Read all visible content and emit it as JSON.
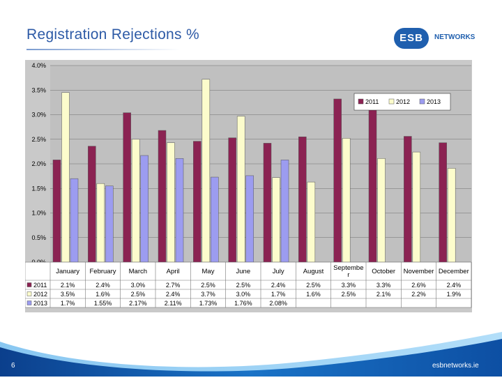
{
  "slide": {
    "title": "Registration Rejections %",
    "logo_mark": "ESB",
    "logo_text": "NETWORKS",
    "page_number": "6",
    "website": "esbnetworks.ie"
  },
  "colors": {
    "s2011": "#8b2252",
    "s2012": "#fcfccc",
    "s2013": "#9c9cf0",
    "accent": "#2d5aa6"
  },
  "chart_data": {
    "type": "bar",
    "title": "",
    "xlabel": "",
    "ylabel": "",
    "ylim": [
      0,
      4.0
    ],
    "yticks": [
      "0.0%",
      "0.5%",
      "1.0%",
      "1.5%",
      "2.0%",
      "2.5%",
      "3.0%",
      "3.5%",
      "4.0%"
    ],
    "legend_position": "top-right",
    "grid": true,
    "categories": [
      "January",
      "February",
      "March",
      "April",
      "May",
      "June",
      "July",
      "August",
      "Septembe r",
      "October",
      "November",
      "December"
    ],
    "series": [
      {
        "name": "2011",
        "values": [
          2.08,
          2.36,
          3.04,
          2.68,
          2.46,
          2.53,
          2.42,
          2.55,
          3.32,
          3.3,
          2.56,
          2.43
        ],
        "labels": [
          "2.1%",
          "2.4%",
          "3.0%",
          "2.7%",
          "2.5%",
          "2.5%",
          "2.4%",
          "2.5%",
          "3.3%",
          "3.3%",
          "2.6%",
          "2.4%"
        ]
      },
      {
        "name": "2012",
        "values": [
          3.45,
          1.6,
          2.5,
          2.43,
          3.72,
          2.97,
          1.72,
          1.63,
          2.52,
          2.11,
          2.24,
          1.91
        ],
        "labels": [
          "3.5%",
          "1.6%",
          "2.5%",
          "2.4%",
          "3.7%",
          "3.0%",
          "1.7%",
          "1.6%",
          "2.5%",
          "2.1%",
          "2.2%",
          "1.9%"
        ]
      },
      {
        "name": "2013",
        "values": [
          1.7,
          1.55,
          2.17,
          2.11,
          1.73,
          1.76,
          2.08,
          null,
          null,
          null,
          null,
          null
        ],
        "labels": [
          "1.7%",
          "1.55%",
          "2.17%",
          "2.11%",
          "1.73%",
          "1.76%",
          "2.08%",
          "",
          "",
          "",
          "",
          ""
        ]
      }
    ]
  }
}
